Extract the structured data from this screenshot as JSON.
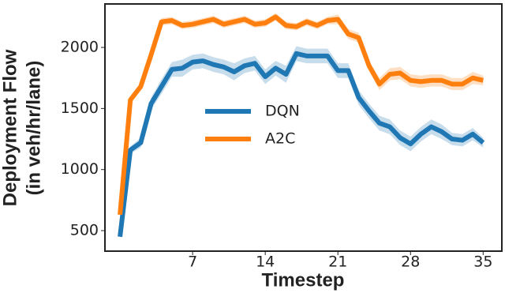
{
  "chart_data": {
    "type": "line",
    "x_label": "Timestep",
    "y_label": [
      "Deployment Flow",
      "(in veh/hr/lane)"
    ],
    "x": [
      0,
      1,
      2,
      3,
      4,
      5,
      6,
      7,
      8,
      9,
      10,
      11,
      12,
      13,
      14,
      15,
      16,
      17,
      18,
      19,
      20,
      21,
      22,
      23,
      24,
      25,
      26,
      27,
      28,
      29,
      30,
      31,
      32,
      33,
      34,
      35
    ],
    "series": [
      {
        "name": "DQN",
        "color": "#1f77b4",
        "values": [
          450,
          1160,
          1220,
          1540,
          1680,
          1820,
          1830,
          1880,
          1890,
          1860,
          1840,
          1800,
          1850,
          1870,
          1760,
          1830,
          1780,
          1950,
          1930,
          1930,
          1930,
          1810,
          1810,
          1590,
          1480,
          1380,
          1350,
          1260,
          1210,
          1290,
          1350,
          1310,
          1250,
          1240,
          1290,
          1220
        ],
        "error": [
          20,
          30,
          40,
          50,
          60,
          60,
          70,
          60,
          60,
          60,
          60,
          70,
          60,
          60,
          60,
          60,
          70,
          60,
          60,
          60,
          60,
          60,
          60,
          60,
          60,
          60,
          60,
          60,
          60,
          60,
          60,
          60,
          50,
          50,
          50,
          40
        ]
      },
      {
        "name": "A2C",
        "color": "#ff7f0e",
        "values": [
          630,
          1570,
          1680,
          1940,
          2210,
          2220,
          2180,
          2190,
          2210,
          2230,
          2190,
          2210,
          2230,
          2190,
          2200,
          2250,
          2180,
          2170,
          2210,
          2180,
          2220,
          2230,
          2110,
          2080,
          1850,
          1700,
          1780,
          1790,
          1730,
          1720,
          1730,
          1730,
          1700,
          1700,
          1750,
          1730
        ],
        "error": [
          20,
          20,
          30,
          40,
          30,
          30,
          30,
          30,
          30,
          30,
          30,
          30,
          30,
          30,
          30,
          30,
          30,
          30,
          30,
          30,
          30,
          40,
          40,
          40,
          40,
          50,
          50,
          50,
          50,
          50,
          50,
          50,
          50,
          50,
          50,
          40
        ]
      }
    ],
    "xlim": [
      -1.45,
      36.8
    ],
    "xticks": [
      7,
      14,
      21,
      28,
      35
    ],
    "ylim": [
      332,
      2356
    ],
    "yticks": [
      500,
      1000,
      1500,
      2000
    ],
    "grid": false
  }
}
